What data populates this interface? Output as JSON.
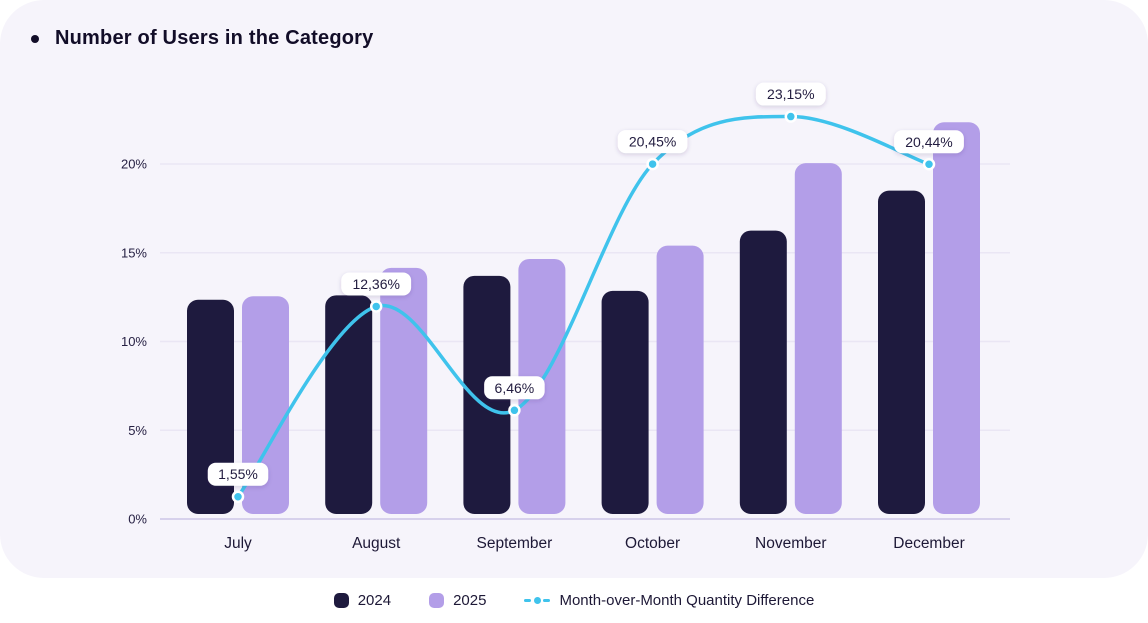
{
  "title": "Number of Users in the Category",
  "chart_data": {
    "type": "bar",
    "subtype": "grouped-bars-with-line-overlay",
    "categories": [
      "July",
      "August",
      "September",
      "October",
      "November",
      "December"
    ],
    "y_axis": {
      "tick_labels": [
        "0%",
        "5%",
        "10%",
        "15%",
        "20%"
      ],
      "tick_values": [
        0,
        5,
        10,
        15,
        20
      ],
      "unit": "%",
      "range": [
        0,
        25
      ]
    },
    "series": [
      {
        "name": "2024",
        "color": "#1e1a3e",
        "values": [
          12.35,
          12.6,
          13.7,
          12.85,
          16.25,
          18.5
        ]
      },
      {
        "name": "2025",
        "color": "#b39ee8",
        "values": [
          12.55,
          14.15,
          14.65,
          15.4,
          20.05,
          22.35
        ]
      }
    ],
    "line_series": {
      "name": "Month-over-Month Quantity Difference",
      "color": "#3fc3ec",
      "values": [
        1.55,
        12.36,
        6.46,
        20.45,
        23.15,
        20.44
      ],
      "point_labels": [
        "1,55%",
        "12,36%",
        "6,46%",
        "20,45%",
        "23,15%",
        "20,44%"
      ]
    },
    "grid": true,
    "legend_position": "bottom"
  },
  "colors": {
    "card_background": "#f6f4fb",
    "page_background": "#ffffff",
    "gridline": "#eae6f4",
    "axis_line": "#d7d1ec",
    "tooltip_background": "#ffffff",
    "tooltip_text": "#221c3f",
    "axis_text": "#262043",
    "title_text": "#120d28"
  }
}
